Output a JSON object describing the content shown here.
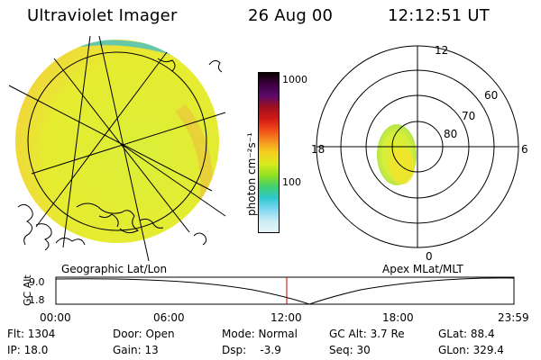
{
  "header": {
    "title": "Ultraviolet Imager",
    "date": "26 Aug 00",
    "time": "12:12:51 UT"
  },
  "colorbar": {
    "label": "photon cm⁻²s⁻¹",
    "ticks": [
      "1000",
      "100"
    ],
    "stops": [
      "#0a0000",
      "#3c0040",
      "#5a0a6a",
      "#a01020",
      "#d01818",
      "#f04a18",
      "#f59020",
      "#f5d020",
      "#d8ea20",
      "#90e020",
      "#40d070",
      "#30c8d0",
      "#7fd8f0",
      "#c9ecf5",
      "#e8f4f6"
    ]
  },
  "left_panel": {
    "caption": "Geographic Lat/Lon",
    "image_color": "#d9ec33",
    "edge_color": "#45c0c8"
  },
  "right_panel": {
    "caption": "Apex MLat/MLT",
    "lat_labels": [
      "60",
      "70",
      "80"
    ],
    "mlt_labels": {
      "top": "12",
      "bottom": "0",
      "left": "18",
      "right": "6"
    },
    "oval_color": "#d9ec33"
  },
  "alt_strip": {
    "ylabel": "GC Alt",
    "y_ticks": [
      "9.0",
      "1.8"
    ],
    "x_ticks": [
      "00:00",
      "06:00",
      "12:00",
      "18:00",
      "23:59"
    ],
    "current_marker_color": "#c00000"
  },
  "footer": {
    "row1": [
      {
        "text": "Flt: 1304"
      },
      {
        "text": "Door: Open"
      },
      {
        "text": "Mode: Normal"
      },
      {
        "text": "GC Alt: 3.7 Re"
      },
      {
        "text": "GLat:  88.4"
      }
    ],
    "row2": [
      {
        "text": "IP: 18.0"
      },
      {
        "text": "Gain: 13"
      },
      {
        "text": "Dsp:    -3.9"
      },
      {
        "text": "Seq: 30"
      },
      {
        "text": "GLon: 329.4"
      }
    ]
  }
}
